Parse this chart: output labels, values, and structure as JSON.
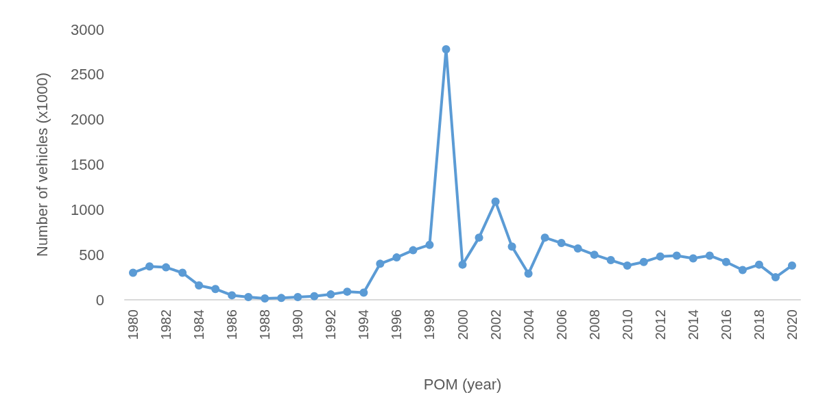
{
  "chart_data": {
    "type": "line",
    "xlabel": "POM (year)",
    "ylabel": "Number of vehicles (x1000)",
    "categories": [
      "1980",
      null,
      "1982",
      null,
      "1984",
      null,
      "1986",
      null,
      "1988",
      null,
      "1990",
      null,
      "1992",
      null,
      "1994",
      null,
      "1996",
      null,
      "1998",
      null,
      "2000",
      null,
      "2002",
      null,
      "2004",
      null,
      "2006",
      null,
      "2008",
      null,
      "2010",
      null,
      "2012",
      null,
      "2014",
      null,
      "2016",
      null,
      "2018",
      null,
      "2020"
    ],
    "series": [
      {
        "color": "#5b9bd5",
        "values": [
          300,
          370,
          360,
          300,
          160,
          120,
          50,
          30,
          15,
          20,
          30,
          40,
          60,
          90,
          80,
          400,
          470,
          550,
          610,
          2780,
          390,
          690,
          1090,
          590,
          290,
          690,
          630,
          570,
          500,
          440,
          380,
          420,
          480,
          490,
          460,
          490,
          420,
          330,
          390,
          250,
          380
        ]
      }
    ],
    "ylim": [
      0,
      3000
    ],
    "yticks": [
      0,
      500,
      1000,
      1500,
      2000,
      2500,
      3000
    ],
    "grid": false,
    "marker": "circle",
    "line_style": "solid"
  }
}
